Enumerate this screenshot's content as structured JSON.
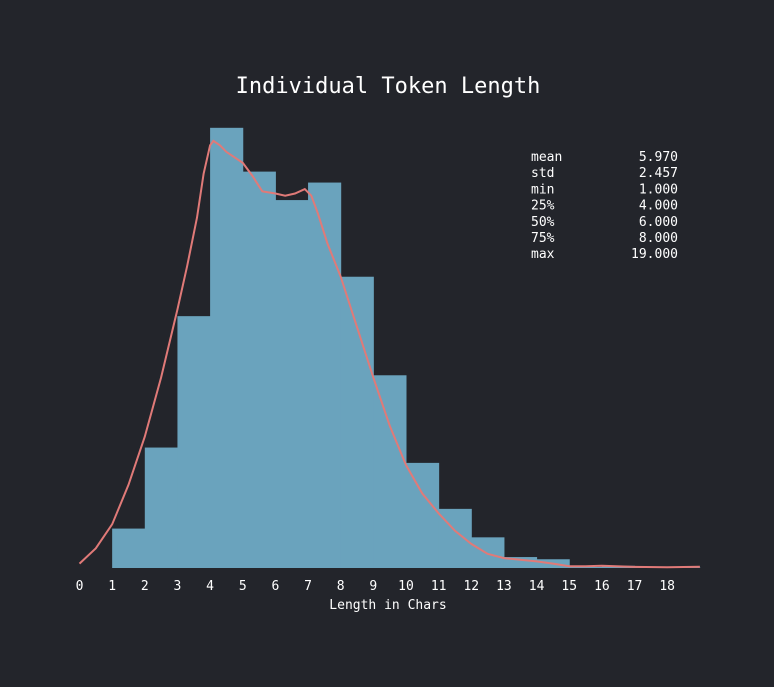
{
  "chart_data": {
    "type": "bar",
    "title": "Individual Token Length",
    "xlabel": "Length in Chars",
    "ylabel": "",
    "xlim": [
      0,
      19
    ],
    "ylim": [
      0,
      0.2
    ],
    "x_ticks": [
      "0",
      "1",
      "2",
      "3",
      "4",
      "5",
      "6",
      "7",
      "8",
      "9",
      "10",
      "11",
      "12",
      "13",
      "14",
      "15",
      "16",
      "17",
      "18"
    ],
    "bins": [
      {
        "start": 1,
        "end": 2,
        "value": 0.018
      },
      {
        "start": 2,
        "end": 3,
        "value": 0.055
      },
      {
        "start": 3,
        "end": 4,
        "value": 0.115
      },
      {
        "start": 4,
        "end": 5,
        "value": 0.201
      },
      {
        "start": 5,
        "end": 6,
        "value": 0.181
      },
      {
        "start": 6,
        "end": 7,
        "value": 0.168
      },
      {
        "start": 7,
        "end": 8,
        "value": 0.176
      },
      {
        "start": 8,
        "end": 9,
        "value": 0.133
      },
      {
        "start": 9,
        "end": 10,
        "value": 0.088
      },
      {
        "start": 10,
        "end": 11,
        "value": 0.048
      },
      {
        "start": 11,
        "end": 12,
        "value": 0.027
      },
      {
        "start": 12,
        "end": 13,
        "value": 0.014
      },
      {
        "start": 13,
        "end": 14,
        "value": 0.005
      },
      {
        "start": 14,
        "end": 15,
        "value": 0.004
      },
      {
        "start": 15,
        "end": 16,
        "value": 0.0005
      },
      {
        "start": 16,
        "end": 17,
        "value": 0.001
      },
      {
        "start": 17,
        "end": 18,
        "value": 0.0003
      },
      {
        "start": 18,
        "end": 19,
        "value": 0.0002
      }
    ],
    "kde": {
      "x": [
        0,
        0.5,
        1,
        1.5,
        2,
        2.5,
        3,
        3.3,
        3.6,
        3.8,
        4,
        4.1,
        4.3,
        4.5,
        4.7,
        5,
        5.3,
        5.6,
        6,
        6.3,
        6.6,
        6.9,
        7.1,
        7.3,
        7.6,
        8,
        8.5,
        9,
        9.5,
        10,
        10.5,
        11,
        11.5,
        12,
        12.5,
        13,
        13.5,
        14,
        14.5,
        15,
        15.5,
        16,
        17,
        18,
        19
      ],
      "y": [
        0.002,
        0.009,
        0.02,
        0.038,
        0.06,
        0.087,
        0.118,
        0.138,
        0.16,
        0.18,
        0.193,
        0.195,
        0.193,
        0.19,
        0.188,
        0.185,
        0.179,
        0.172,
        0.171,
        0.17,
        0.171,
        0.173,
        0.17,
        0.162,
        0.148,
        0.133,
        0.11,
        0.087,
        0.065,
        0.047,
        0.034,
        0.025,
        0.017,
        0.011,
        0.0065,
        0.0045,
        0.0038,
        0.003,
        0.002,
        0.0008,
        0.0008,
        0.001,
        0.0005,
        0.0003,
        0.0006
      ]
    },
    "bar_color": "#6aa3bd",
    "line_color": "#e07a78",
    "background": "#23252b",
    "grid": false,
    "legend": "none",
    "stats": [
      {
        "label": "mean",
        "value": "5.970"
      },
      {
        "label": "std",
        "value": "2.457"
      },
      {
        "label": "min",
        "value": "1.000"
      },
      {
        "label": "25%",
        "value": "4.000"
      },
      {
        "label": "50%",
        "value": "6.000"
      },
      {
        "label": "75%",
        "value": "8.000"
      },
      {
        "label": "max",
        "value": "19.000"
      }
    ]
  }
}
